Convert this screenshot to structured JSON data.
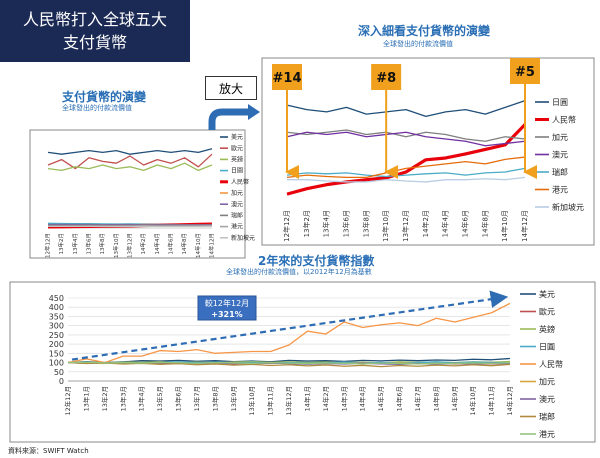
{
  "title": {
    "line1": "人民幣打入全球五大",
    "line2": "支付貨幣"
  },
  "zoom_label": "放大",
  "source": "資料來源：SWIFT Watch",
  "colors": {
    "title_bg": "#1b2a55",
    "blue": "#2a6fb5",
    "rmb": "#e8000b",
    "arrow": "#f0a01c"
  },
  "chart_data": [
    {
      "id": "mini",
      "type": "line",
      "title": "支付貨幣的演變",
      "subtitle": "全球發出的付款流價值",
      "categories": [
        "12年12月",
        "13年2月",
        "13年4月",
        "13年6月",
        "13年8月",
        "13年10月",
        "13年12月",
        "14年2月",
        "14年4月",
        "14年6月",
        "14年8月",
        "14年10月",
        "14年12月"
      ],
      "ylim": [
        0,
        50
      ],
      "series": [
        {
          "name": "美元",
          "color": "#1f4e79",
          "values": [
            42,
            41,
            42,
            43,
            42,
            43,
            41,
            42,
            43,
            42,
            43,
            42,
            44
          ]
        },
        {
          "name": "歐元",
          "color": "#c0504d",
          "values": [
            35,
            38,
            33,
            39,
            37,
            36,
            40,
            35,
            38,
            36,
            39,
            34,
            41
          ]
        },
        {
          "name": "英鎊",
          "color": "#9bbb59",
          "values": [
            33,
            32,
            34,
            33,
            35,
            33,
            34,
            32,
            35,
            33,
            36,
            32,
            35
          ]
        },
        {
          "name": "日圓",
          "color": "#4bacc6",
          "values": [
            2.6,
            2.5,
            2.4,
            2.4,
            2.3,
            2.2,
            2.3,
            2.2,
            2.1,
            2.2,
            2.1,
            2.0,
            2.7
          ]
        },
        {
          "name": "人民幣",
          "color": "#e8000b",
          "values": [
            0.6,
            0.7,
            0.8,
            0.9,
            1.0,
            1.1,
            1.2,
            1.4,
            1.5,
            1.6,
            1.8,
            2.0,
            2.2
          ]
        },
        {
          "name": "加元",
          "color": "#f79646",
          "values": [
            1.8,
            1.8,
            1.8,
            1.9,
            1.8,
            1.8,
            1.8,
            1.9,
            1.8,
            1.8,
            1.8,
            1.8,
            1.9
          ]
        },
        {
          "name": "澳元",
          "color": "#8064a2",
          "values": [
            1.9,
            2.0,
            1.9,
            1.9,
            1.8,
            1.9,
            1.9,
            1.8,
            1.8,
            1.8,
            1.8,
            1.8,
            1.8
          ]
        },
        {
          "name": "瑞郎",
          "color": "#7f7f7f",
          "values": [
            1.4,
            1.4,
            1.4,
            1.5,
            1.4,
            1.4,
            1.4,
            1.5,
            1.4,
            1.4,
            1.4,
            1.4,
            1.4
          ]
        },
        {
          "name": "港元",
          "color": "#a5a5a5",
          "values": [
            1.0,
            1.0,
            1.0,
            1.1,
            1.0,
            1.0,
            1.0,
            1.1,
            1.0,
            1.0,
            1.0,
            1.1,
            1.1
          ]
        },
        {
          "name": "新加坡元",
          "color": "#c3c3c3",
          "values": [
            0.9,
            0.9,
            0.9,
            0.9,
            0.9,
            0.9,
            0.9,
            1.0,
            0.9,
            0.9,
            0.9,
            0.9,
            1.0
          ]
        }
      ]
    },
    {
      "id": "zoom",
      "type": "line",
      "title": "深入細看支付貨幣的演變",
      "subtitle": "全球發出的付款流價值",
      "categories": [
        "12年12月",
        "13年2月",
        "13年4月",
        "13年6月",
        "13年8月",
        "13年10月",
        "13年12月",
        "14年2月",
        "14年4月",
        "14年6月",
        "14年8月",
        "14年10月",
        "14年12月"
      ],
      "ylim": [
        0.5,
        3.2
      ],
      "annotations": [
        {
          "label": "#14",
          "x": "12年12月"
        },
        {
          "label": "#8",
          "x": "13年10月"
        },
        {
          "label": "#5",
          "x": "14年12月"
        }
      ],
      "series": [
        {
          "name": "日圓",
          "color": "#1f4e79",
          "values": [
            2.6,
            2.5,
            2.45,
            2.55,
            2.4,
            2.45,
            2.5,
            2.35,
            2.45,
            2.5,
            2.4,
            2.55,
            2.7
          ]
        },
        {
          "name": "人民幣",
          "color": "#e8000b",
          "values": [
            0.63,
            0.75,
            0.84,
            0.9,
            0.95,
            0.99,
            1.12,
            1.39,
            1.43,
            1.52,
            1.62,
            1.72,
            2.17
          ]
        },
        {
          "name": "加元",
          "color": "#7f7f7f",
          "values": [
            2.0,
            1.95,
            2.0,
            2.05,
            1.95,
            2.0,
            1.9,
            2.0,
            1.95,
            1.85,
            1.8,
            1.9,
            1.85
          ]
        },
        {
          "name": "澳元",
          "color": "#7030a0",
          "values": [
            1.9,
            2.0,
            1.95,
            2.0,
            1.9,
            1.95,
            2.0,
            1.9,
            1.85,
            1.8,
            1.7,
            1.75,
            1.8
          ]
        },
        {
          "name": "瑞郎",
          "color": "#4bacc6",
          "values": [
            1.05,
            1.1,
            1.08,
            1.1,
            1.05,
            1.02,
            1.05,
            1.08,
            1.1,
            1.05,
            1.1,
            1.12,
            1.2
          ]
        },
        {
          "name": "港元",
          "color": "#e46c0a",
          "values": [
            1.0,
            1.05,
            1.02,
            1.0,
            1.0,
            1.1,
            1.2,
            1.25,
            1.3,
            1.35,
            1.3,
            1.4,
            1.45
          ]
        },
        {
          "name": "新加坡元",
          "color": "#b9cde5",
          "values": [
            0.95,
            0.95,
            0.92,
            0.9,
            0.9,
            0.95,
            0.92,
            0.9,
            0.95,
            0.95,
            0.97,
            0.95,
            1.0
          ]
        }
      ]
    },
    {
      "id": "index",
      "type": "line",
      "title": "2年來的支付貨幣指數",
      "subtitle": "全球發出的付款流價值，以2012年12月為基數",
      "categories": [
        "12年12月",
        "13年1月",
        "13年2月",
        "13年3月",
        "13年4月",
        "13年5月",
        "13年6月",
        "13年7月",
        "13年8月",
        "13年9月",
        "13年10月",
        "13年11月",
        "13年12月",
        "14年1月",
        "14年2月",
        "14年3月",
        "14年4月",
        "14年5月",
        "14年6月",
        "14年7月",
        "14年8月",
        "14年9月",
        "14年10月",
        "14年11月",
        "14年12月"
      ],
      "yticks": [
        0,
        50,
        100,
        150,
        200,
        250,
        300,
        350,
        400,
        450
      ],
      "ylim": [
        0,
        450
      ],
      "annotation": {
        "line1": "較12年12月",
        "line2": "+321%"
      },
      "series": [
        {
          "name": "美元",
          "color": "#1f4e79",
          "values": [
            100,
            105,
            100,
            104,
            110,
            108,
            112,
            107,
            110,
            105,
            108,
            104,
            112,
            108,
            110,
            106,
            112,
            109,
            113,
            110,
            114,
            112,
            118,
            115,
            122
          ]
        },
        {
          "name": "歐元",
          "color": "#c0504d",
          "values": [
            100,
            98,
            96,
            100,
            95,
            98,
            94,
            96,
            97,
            93,
            97,
            95,
            100,
            96,
            98,
            94,
            97,
            95,
            98,
            94,
            96,
            92,
            95,
            93,
            96
          ]
        },
        {
          "name": "英鎊",
          "color": "#9bbb59",
          "values": [
            100,
            102,
            99,
            103,
            101,
            104,
            100,
            102,
            99,
            103,
            105,
            101,
            104,
            100,
            103,
            99,
            102,
            98,
            104,
            101,
            103,
            100,
            104,
            102,
            106
          ]
        },
        {
          "name": "日圓",
          "color": "#4bacc6",
          "values": [
            100,
            103,
            98,
            101,
            97,
            100,
            104,
            99,
            102,
            98,
            101,
            97,
            100,
            96,
            99,
            103,
            98,
            101,
            97,
            100,
            104,
            99,
            103,
            100,
            98
          ]
        },
        {
          "name": "人民幣",
          "color": "#f79646",
          "values": [
            100,
            120,
            100,
            135,
            135,
            165,
            160,
            170,
            150,
            155,
            160,
            160,
            195,
            270,
            255,
            320,
            290,
            305,
            315,
            300,
            340,
            320,
            345,
            370,
            421
          ]
        },
        {
          "name": "加元",
          "color": "#d9a441",
          "values": [
            100,
            97,
            95,
            99,
            96,
            100,
            98,
            94,
            97,
            99,
            95,
            98,
            96,
            93,
            97,
            95,
            98,
            94,
            97,
            95,
            93,
            96,
            94,
            97,
            95
          ]
        },
        {
          "name": "澳元",
          "color": "#8064a2",
          "values": [
            100,
            96,
            99,
            94,
            97,
            93,
            98,
            95,
            92,
            96,
            93,
            97,
            94,
            91,
            95,
            92,
            96,
            93,
            90,
            94,
            91,
            95,
            92,
            96,
            93
          ]
        },
        {
          "name": "瑞郎",
          "color": "#b08a3e",
          "values": [
            100,
            95,
            98,
            92,
            96,
            90,
            94,
            88,
            92,
            86,
            90,
            84,
            88,
            82,
            87,
            80,
            85,
            78,
            84,
            80,
            86,
            82,
            88,
            83,
            90
          ]
        },
        {
          "name": "港元",
          "color": "#93c47d",
          "values": [
            100,
            102,
            98,
            100,
            97,
            101,
            99,
            96,
            100,
            98,
            95,
            99,
            97,
            94,
            98,
            96,
            93,
            97,
            95,
            92,
            96,
            94,
            98,
            95,
            99
          ]
        }
      ]
    }
  ]
}
